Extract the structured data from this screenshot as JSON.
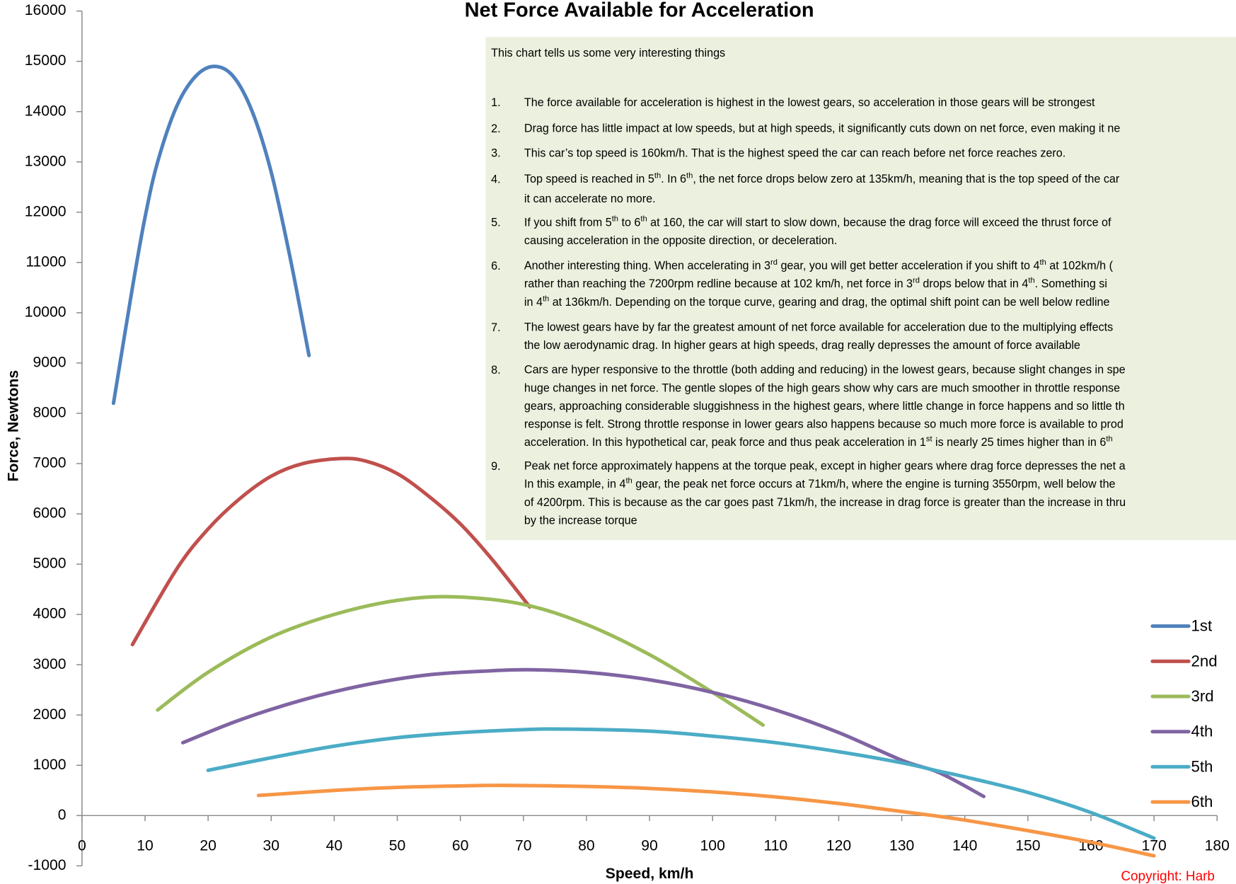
{
  "chart_data": {
    "type": "line",
    "title": "Net Force Available for Acceleration",
    "xlabel": "Speed, km/h",
    "ylabel": "Force, Newtons",
    "xlim": [
      0,
      180
    ],
    "xticks": [
      0,
      10,
      20,
      30,
      40,
      50,
      60,
      70,
      80,
      90,
      100,
      110,
      120,
      130,
      140,
      150,
      160,
      170,
      180
    ],
    "ylim": [
      -1000,
      16000
    ],
    "yticks": [
      -1000,
      0,
      1000,
      2000,
      3000,
      4000,
      5000,
      6000,
      7000,
      8000,
      9000,
      10000,
      11000,
      12000,
      13000,
      14000,
      15000,
      16000
    ],
    "legend": "right",
    "series": [
      {
        "name": "1st",
        "color": "#4f81bd",
        "x": [
          5,
          8,
          10,
          12,
          15,
          18,
          21,
          24,
          27,
          30,
          33,
          36
        ],
        "values": [
          8200,
          10500,
          11900,
          13000,
          14100,
          14700,
          14900,
          14700,
          14000,
          12800,
          11100,
          9150
        ]
      },
      {
        "name": "2nd",
        "color": "#c0504d",
        "x": [
          8,
          15,
          20,
          25,
          30,
          35,
          41,
          45,
          50,
          55,
          60,
          65,
          71
        ],
        "values": [
          3400,
          4900,
          5700,
          6300,
          6750,
          7000,
          7100,
          7050,
          6800,
          6350,
          5800,
          5100,
          4150
        ]
      },
      {
        "name": "3rd",
        "color": "#9bbb59",
        "x": [
          12,
          20,
          30,
          40,
          50,
          59,
          70,
          80,
          90,
          100,
          108
        ],
        "values": [
          2100,
          2850,
          3550,
          4000,
          4280,
          4350,
          4200,
          3800,
          3200,
          2450,
          1800
        ]
      },
      {
        "name": "4th",
        "color": "#8064a2",
        "x": [
          16,
          25,
          35,
          45,
          55,
          65,
          71,
          80,
          90,
          100,
          110,
          120,
          130,
          136,
          143
        ],
        "values": [
          1450,
          1900,
          2300,
          2600,
          2800,
          2880,
          2900,
          2850,
          2700,
          2450,
          2100,
          1650,
          1100,
          850,
          380
        ]
      },
      {
        "name": "5th",
        "color": "#4bacc6",
        "x": [
          20,
          30,
          40,
          50,
          60,
          70,
          77,
          90,
          100,
          110,
          120,
          130,
          136,
          140,
          150,
          160,
          170
        ],
        "values": [
          900,
          1150,
          1380,
          1550,
          1650,
          1710,
          1720,
          1680,
          1580,
          1450,
          1270,
          1050,
          880,
          770,
          460,
          60,
          -450
        ]
      },
      {
        "name": "6th",
        "color": "#f79646",
        "x": [
          28,
          40,
          50,
          60,
          67,
          80,
          90,
          100,
          110,
          120,
          130,
          135,
          140,
          150,
          160,
          170
        ],
        "values": [
          400,
          500,
          560,
          590,
          600,
          580,
          540,
          470,
          370,
          240,
          80,
          0,
          -90,
          -300,
          -530,
          -800
        ]
      }
    ],
    "notes": {
      "intro": "This chart tells us some very interesting things",
      "items": [
        {
          "number": "1.",
          "lines": [
            [
              "The force available for acceleration is highest in the lowest gears, so acceleration in those gears will be strongest"
            ]
          ]
        },
        {
          "number": "2.",
          "lines": [
            [
              "Drag force has little impact at low speeds, but at high speeds, it significantly cuts down on net force, even making it ne"
            ]
          ]
        },
        {
          "number": "3.",
          "lines": [
            [
              "This car’s top speed is 160km/h. That is the highest speed the car can reach before net force reaches zero."
            ]
          ]
        },
        {
          "number": "4.",
          "lines": [
            [
              "Top speed is reached in 5",
              "th",
              ". In 6",
              "th",
              ", the net force drops below zero at 135km/h, meaning that is the top speed of the car"
            ],
            [
              "it can accelerate no more."
            ]
          ]
        },
        {
          "number": "5.",
          "lines": [
            [
              "If you shift from 5",
              "th",
              " to 6",
              "th",
              " at 160, the car will start to slow down, because the drag force will exceed the thrust force of"
            ],
            [
              "causing acceleration in the opposite direction, or deceleration."
            ]
          ]
        },
        {
          "number": "6.",
          "lines": [
            [
              "Another interesting thing. When accelerating in 3",
              "rd",
              " gear, you will get better acceleration if you shift to 4",
              "th",
              " at 102km/h ("
            ],
            [
              "rather than reaching the 7200rpm redline because at 102 km/h, net force in 3",
              "rd",
              " drops below that in 4",
              "th",
              ".   Something si"
            ],
            [
              "in 4",
              "th",
              " at 136km/h. Depending on the torque curve, gearing and drag, the optimal shift point can be well below redline"
            ]
          ]
        },
        {
          "number": "7.",
          "lines": [
            [
              "The lowest gears have by far the greatest amount of net force available for acceleration due to the multiplying effects"
            ],
            [
              "the low aerodynamic drag. In higher gears at high speeds, drag really depresses the amount of force available"
            ]
          ]
        },
        {
          "number": "8.",
          "lines": [
            [
              "Cars are hyper responsive to the throttle (both adding and reducing) in the lowest gears, because slight changes in spe"
            ],
            [
              "huge changes in net force. The gentle slopes of the high gears show why cars are much smoother in throttle response"
            ],
            [
              "gears, approaching considerable sluggishness in the highest gears, where little change in force happens and so little th"
            ],
            [
              "response is felt. Strong throttle response in lower gears also happens because so much more force is available to prod"
            ],
            [
              "acceleration. In this hypothetical car, peak force and thus peak acceleration in 1",
              "st",
              " is nearly 25 times higher than in 6",
              "th"
            ]
          ]
        },
        {
          "number": "9.",
          "lines": [
            [
              "Peak net force approximately happens at the torque peak, except in higher gears where drag force depresses the net a"
            ],
            [
              "In this example, in 4",
              "th",
              " gear, the peak net force occurs at 71km/h, where the engine is turning 3550rpm, well below the"
            ],
            [
              "of 4200rpm. This is because as the car goes past 71km/h, the increase in drag force is greater than the increase in thru"
            ],
            [
              "by the increase torque"
            ]
          ]
        }
      ]
    },
    "copyright": "Copyright: Harb"
  }
}
